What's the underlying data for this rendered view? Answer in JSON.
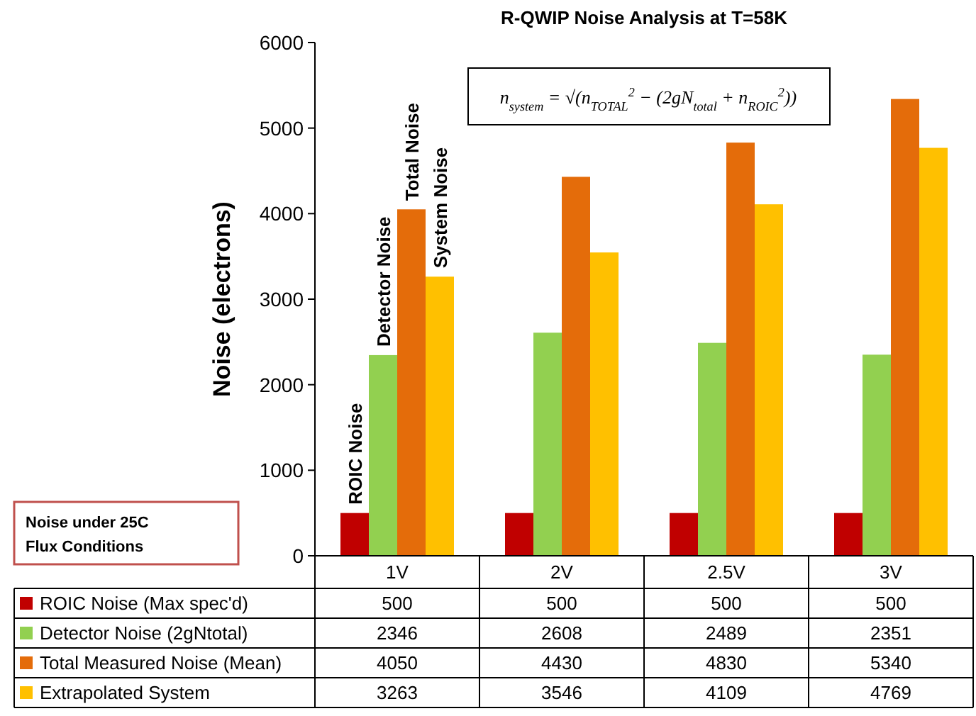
{
  "chart_data": {
    "type": "bar",
    "title": "R-QWIP Noise Analysis at T=58K",
    "ylabel": "Noise (electrons)",
    "categories": [
      "1V",
      "2V",
      "2.5V",
      "3V"
    ],
    "series": [
      {
        "name": "ROIC Noise (Max spec'd)",
        "color": "#c00000",
        "values": [
          500,
          500,
          500,
          500
        ]
      },
      {
        "name": "Detector  Noise (2gNtotal)",
        "color": "#92d050",
        "values": [
          2346,
          2608,
          2489,
          2351
        ]
      },
      {
        "name": "Total Measured Noise (Mean)",
        "color": "#e46c0a",
        "values": [
          4050,
          4430,
          4830,
          5340
        ]
      },
      {
        "name": "Extrapolated System",
        "color": "#ffc000",
        "values": [
          3263,
          3546,
          4109,
          4769
        ]
      }
    ],
    "ylim": [
      0,
      6000
    ],
    "yticks": [
      0,
      1000,
      2000,
      3000,
      4000,
      5000,
      6000
    ],
    "grid": false,
    "legend": "bottom",
    "data_labels": true,
    "annotations": [
      {
        "text": "ROIC Noise",
        "x": "1V",
        "y": 500
      },
      {
        "text": "Detector Noise",
        "x": "1V",
        "y": 2346
      },
      {
        "text": "Total Noise",
        "x": "1V",
        "y": 4050
      },
      {
        "text": "System Noise",
        "x": "1V",
        "y": 3263
      },
      "n$_{system}$ = √(n$_{TOTAL}$$^{2}$ − (2gN$_{total}$ + n$_{ROIC}$$^{2}$))",
      "Noise under 25C Flux Conditions"
    ]
  }
}
